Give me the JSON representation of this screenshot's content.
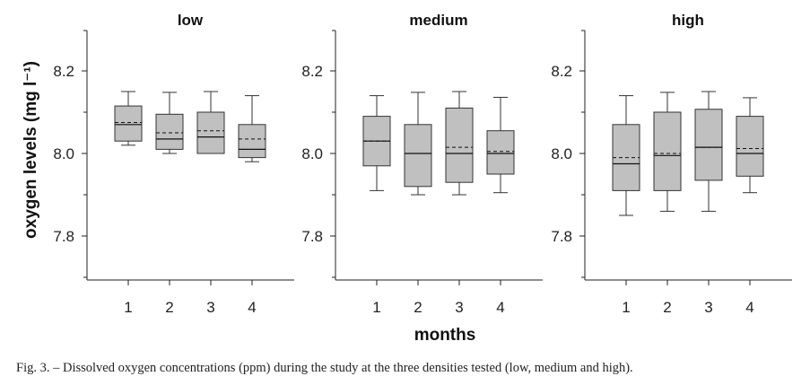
{
  "caption": "Fig. 3. – Dissolved oxygen concentrations (ppm) during the study at the three densities tested (low, medium and high).",
  "chart_data": {
    "type": "box",
    "ylabel": "oxygen   levels (mg l⁻¹)",
    "xlabel": "months",
    "categories": [
      "1",
      "2",
      "3",
      "4"
    ],
    "y_ticks": [
      "7.8",
      "8.0",
      "8.2"
    ],
    "ylim": [
      7.7,
      8.3
    ],
    "box_color": "#c0c0c0",
    "panels": [
      {
        "title": "low",
        "boxes": [
          {
            "x": "1",
            "min": 8.02,
            "q1": 8.03,
            "median": 8.07,
            "mean": 8.075,
            "q3": 8.115,
            "max": 8.15
          },
          {
            "x": "2",
            "min": 8.0,
            "q1": 8.01,
            "median": 8.035,
            "mean": 8.05,
            "q3": 8.095,
            "max": 8.148
          },
          {
            "x": "3",
            "min": 8.0,
            "q1": 8.0,
            "median": 8.04,
            "mean": 8.055,
            "q3": 8.1,
            "max": 8.15
          },
          {
            "x": "4",
            "min": 7.98,
            "q1": 7.99,
            "median": 8.01,
            "mean": 8.035,
            "q3": 8.07,
            "max": 8.14
          }
        ]
      },
      {
        "title": "medium",
        "boxes": [
          {
            "x": "1",
            "min": 7.91,
            "q1": 7.97,
            "median": 8.03,
            "mean": 8.03,
            "q3": 8.09,
            "max": 8.14
          },
          {
            "x": "2",
            "min": 7.9,
            "q1": 7.92,
            "median": 8.0,
            "mean": 8.0,
            "q3": 8.07,
            "max": 8.148
          },
          {
            "x": "3",
            "min": 7.9,
            "q1": 7.93,
            "median": 8.0,
            "mean": 8.015,
            "q3": 8.11,
            "max": 8.15
          },
          {
            "x": "4",
            "min": 7.905,
            "q1": 7.95,
            "median": 8.0,
            "mean": 8.005,
            "q3": 8.055,
            "max": 8.136
          }
        ]
      },
      {
        "title": "high",
        "boxes": [
          {
            "x": "1",
            "min": 7.85,
            "q1": 7.91,
            "median": 7.975,
            "mean": 7.99,
            "q3": 8.07,
            "max": 8.14
          },
          {
            "x": "2",
            "min": 7.86,
            "q1": 7.91,
            "median": 7.995,
            "mean": 8.0,
            "q3": 8.1,
            "max": 8.148
          },
          {
            "x": "3",
            "min": 7.86,
            "q1": 7.935,
            "median": 8.015,
            "mean": 8.015,
            "q3": 8.107,
            "max": 8.15
          },
          {
            "x": "4",
            "min": 7.905,
            "q1": 7.945,
            "median": 8.0,
            "mean": 8.012,
            "q3": 8.09,
            "max": 8.135
          }
        ]
      }
    ]
  }
}
